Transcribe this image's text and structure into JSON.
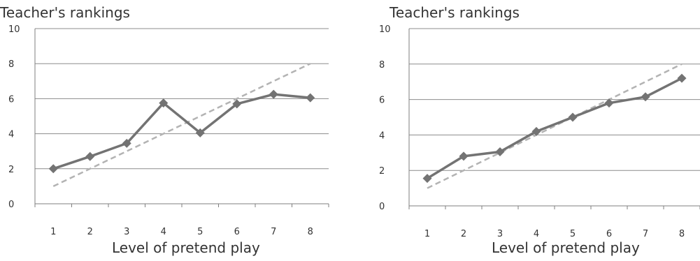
{
  "chart_data": [
    {
      "type": "line",
      "title": "Teacher's rankings",
      "xlabel": "Level of pretend play",
      "ylabel": "",
      "categories": [
        "1",
        "2",
        "3",
        "4",
        "5",
        "6",
        "7",
        "8"
      ],
      "ylim": [
        0,
        10
      ],
      "yticks": [
        0,
        2,
        4,
        6,
        8,
        10
      ],
      "grid": true,
      "series": [
        {
          "values": [
            2.0,
            2.7,
            3.45,
            5.75,
            4.05,
            5.7,
            6.25,
            6.05
          ],
          "style": "solid",
          "marker": "diamond",
          "color": "#737373"
        },
        {
          "values": [
            1,
            2,
            3,
            4,
            5,
            6,
            7,
            8
          ],
          "style": "dashed",
          "color": "#b3b3b3"
        }
      ]
    },
    {
      "type": "line",
      "title": "Teacher's rankings",
      "xlabel": "Level of pretend play",
      "ylabel": "",
      "categories": [
        "1",
        "2",
        "3",
        "4",
        "5",
        "6",
        "7",
        "8"
      ],
      "ylim": [
        0,
        10
      ],
      "yticks": [
        0,
        2,
        4,
        6,
        8,
        10
      ],
      "grid": true,
      "series": [
        {
          "values": [
            1.55,
            2.8,
            3.05,
            4.2,
            5.0,
            5.8,
            6.15,
            7.2
          ],
          "style": "solid",
          "marker": "diamond",
          "color": "#737373"
        },
        {
          "values": [
            1,
            2,
            3,
            4,
            5,
            6,
            7,
            8
          ],
          "style": "dashed",
          "color": "#b3b3b3"
        }
      ]
    }
  ]
}
